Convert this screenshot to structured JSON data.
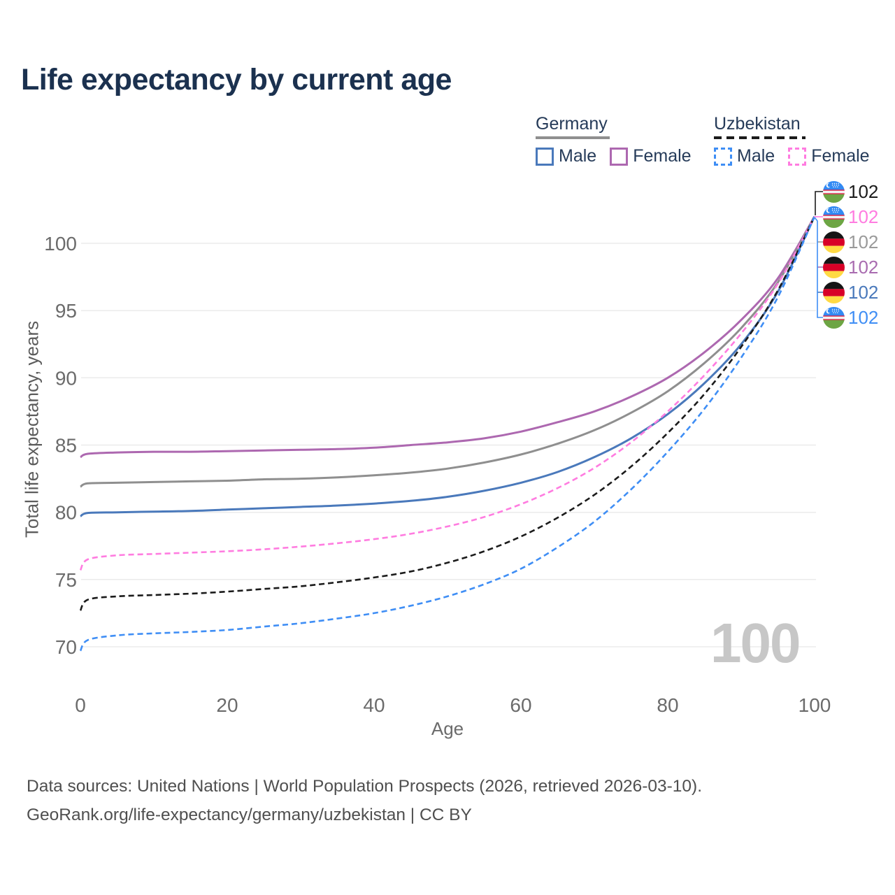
{
  "title": "Life expectancy by current age",
  "watermark": "100",
  "legend": {
    "groups": [
      {
        "id": "germany",
        "label": "Germany",
        "style": "solid",
        "color": "#8f8f8f",
        "items": [
          {
            "label": "Male",
            "series_key": "germany-male"
          },
          {
            "label": "Female",
            "series_key": "germany-female"
          }
        ]
      },
      {
        "id": "uzbekistan",
        "label": "Uzbekistan",
        "style": "dashed",
        "color": "#1b1b1b",
        "items": [
          {
            "label": "Male",
            "series_key": "uzbekistan-male"
          },
          {
            "label": "Female",
            "series_key": "uzbekistan-female"
          }
        ]
      }
    ]
  },
  "chart_data": {
    "type": "line",
    "title": "Life expectancy by current age",
    "xlabel": "Age",
    "ylabel": "Total life expectancy, years",
    "xlim": [
      0,
      100
    ],
    "ylim": [
      69.5,
      103
    ],
    "xticks": [
      0,
      20,
      40,
      60,
      80,
      100
    ],
    "yticks": [
      70,
      75,
      80,
      85,
      90,
      95,
      100
    ],
    "grid": "horizontal",
    "legend_position": "top-right",
    "x": [
      0,
      1,
      5,
      10,
      15,
      20,
      25,
      30,
      35,
      40,
      45,
      50,
      55,
      60,
      65,
      70,
      75,
      80,
      85,
      90,
      95,
      100
    ],
    "series": [
      {
        "key": "germany-female",
        "name": "Germany Female",
        "color": "#ad68b0",
        "dashed": false,
        "end_label": "102",
        "values": [
          84.1,
          84.35,
          84.45,
          84.5,
          84.5,
          84.55,
          84.6,
          84.65,
          84.7,
          84.8,
          85.0,
          85.2,
          85.5,
          86.0,
          86.7,
          87.5,
          88.6,
          90.0,
          91.9,
          94.3,
          97.4,
          102
        ]
      },
      {
        "key": "germany-total",
        "name": "Germany Total",
        "color": "#8f8f8f",
        "dashed": false,
        "end_label": "102",
        "values": [
          81.9,
          82.15,
          82.2,
          82.25,
          82.3,
          82.35,
          82.45,
          82.5,
          82.6,
          82.75,
          82.95,
          83.25,
          83.7,
          84.3,
          85.1,
          86.1,
          87.4,
          89.0,
          91.1,
          93.7,
          97.1,
          102
        ]
      },
      {
        "key": "germany-male",
        "name": "Germany Male",
        "color": "#4a79bb",
        "dashed": false,
        "end_label": "102",
        "values": [
          79.7,
          79.95,
          80.0,
          80.05,
          80.1,
          80.2,
          80.3,
          80.4,
          80.5,
          80.65,
          80.85,
          81.15,
          81.6,
          82.2,
          83.0,
          84.1,
          85.5,
          87.3,
          89.6,
          92.5,
          96.4,
          102
        ]
      },
      {
        "key": "uzbekistan-female",
        "name": "Uzbekistan Female",
        "color": "#ff7ce0",
        "dashed": true,
        "end_label": "102",
        "values": [
          75.7,
          76.5,
          76.8,
          76.9,
          77.0,
          77.1,
          77.25,
          77.45,
          77.7,
          78.0,
          78.4,
          78.95,
          79.65,
          80.6,
          81.8,
          83.3,
          85.2,
          87.5,
          90.2,
          93.3,
          97.0,
          102
        ]
      },
      {
        "key": "uzbekistan-total",
        "name": "Uzbekistan Total",
        "color": "#1b1b1b",
        "dashed": true,
        "end_label": "102",
        "values": [
          72.7,
          73.5,
          73.75,
          73.85,
          73.95,
          74.1,
          74.3,
          74.5,
          74.8,
          75.15,
          75.6,
          76.25,
          77.1,
          78.2,
          79.6,
          81.3,
          83.4,
          85.9,
          88.8,
          92.3,
          96.5,
          102
        ]
      },
      {
        "key": "uzbekistan-male",
        "name": "Uzbekistan Male",
        "color": "#3f8ef5",
        "dashed": true,
        "end_label": "102",
        "values": [
          69.7,
          70.5,
          70.85,
          71.0,
          71.1,
          71.25,
          71.5,
          71.75,
          72.1,
          72.5,
          73.05,
          73.75,
          74.65,
          75.8,
          77.4,
          79.3,
          81.7,
          84.5,
          87.7,
          91.5,
          96.0,
          102
        ]
      }
    ]
  },
  "end_labels": [
    {
      "flag": "uz",
      "value": "102",
      "color": "#1b1b1b",
      "series_key": "uzbekistan-total"
    },
    {
      "flag": "uz",
      "value": "102",
      "color": "#ff7ce0",
      "series_key": "uzbekistan-female"
    },
    {
      "flag": "de",
      "value": "102",
      "color": "#9a9a9a",
      "series_key": "germany-total"
    },
    {
      "flag": "de",
      "value": "102",
      "color": "#a96cb0",
      "series_key": "germany-female"
    },
    {
      "flag": "de",
      "value": "102",
      "color": "#4a79bb",
      "series_key": "germany-male"
    },
    {
      "flag": "uz",
      "value": "102",
      "color": "#3f8ef5",
      "series_key": "uzbekistan-male"
    }
  ],
  "flags": {
    "uz": {
      "blue": "#338AF3",
      "white": "#F2F2F2",
      "red": "#D80027",
      "green": "#6DA544"
    },
    "de": {
      "black": "#151515",
      "red": "#D80027",
      "gold": "#FFDA44"
    }
  },
  "footer": {
    "line1": "Data sources: United Nations | World Population Prospects (2026, retrieved 2026-03-10).",
    "line2": "GeoRank.org/life-expectancy/germany/uzbekistan | CC BY"
  },
  "colors": {
    "title_text": "#1b314f",
    "legend_text": "#263b59",
    "axis_text": "#6b6b6b",
    "gridline": "#ebebeb",
    "watermark": "#c7c7c7",
    "footer_text": "#4f4f4f"
  }
}
